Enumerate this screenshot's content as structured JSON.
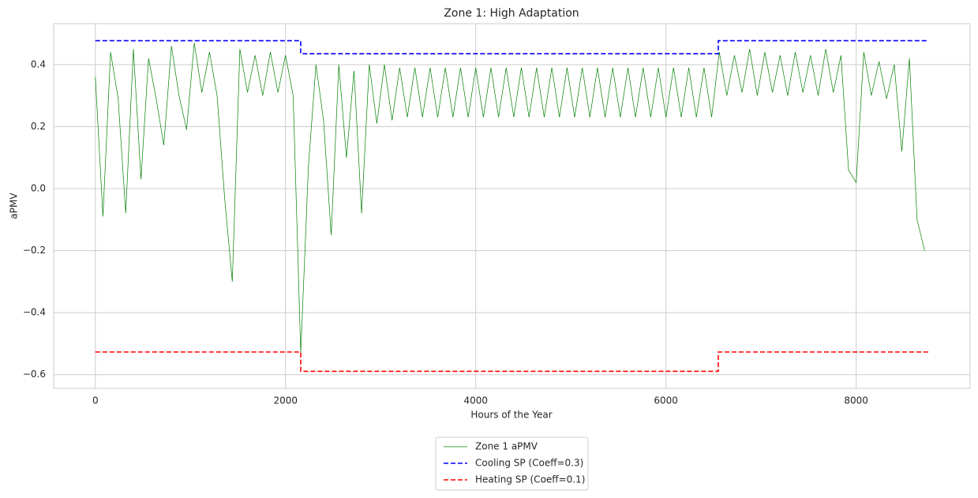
{
  "chart_data": {
    "type": "line",
    "title": "Zone 1: High Adaptation",
    "x_label": "Hours of the Year",
    "y_label": "aPMV",
    "xlim": [
      -438,
      9198
    ],
    "ylim": [
      -0.644,
      0.532
    ],
    "xticks": [
      0,
      2000,
      4000,
      6000,
      8000
    ],
    "yticks": [
      {
        "value": -0.6,
        "label": "−0.6"
      },
      {
        "value": -0.4,
        "label": "−0.4"
      },
      {
        "value": -0.2,
        "label": "−0.2"
      },
      {
        "value": 0,
        "label": "0.0"
      },
      0.2,
      0.4
    ],
    "grid": true,
    "legend": "below",
    "series": [
      {
        "name": "Zone 1 aPMV",
        "color": "#008000",
        "style": "solid",
        "x": [
          0,
          80,
          160,
          240,
          320,
          400,
          480,
          560,
          640,
          720,
          800,
          880,
          960,
          1040,
          1120,
          1200,
          1280,
          1360,
          1440,
          1520,
          1600,
          1680,
          1760,
          1840,
          1920,
          2000,
          2080,
          2160,
          2240,
          2320,
          2400,
          2480,
          2560,
          2640,
          2720,
          2800,
          2880,
          2960,
          3040,
          3120,
          3200,
          3280,
          3360,
          3440,
          3520,
          3600,
          3680,
          3760,
          3840,
          3920,
          4000,
          4080,
          4160,
          4240,
          4320,
          4400,
          4480,
          4560,
          4640,
          4720,
          4800,
          4880,
          4960,
          5040,
          5120,
          5200,
          5280,
          5360,
          5440,
          5520,
          5600,
          5680,
          5760,
          5840,
          5920,
          6000,
          6080,
          6160,
          6240,
          6320,
          6400,
          6480,
          6560,
          6640,
          6720,
          6800,
          6880,
          6960,
          7040,
          7120,
          7200,
          7280,
          7360,
          7440,
          7520,
          7600,
          7680,
          7760,
          7840,
          7920,
          8000,
          8080,
          8160,
          8240,
          8320,
          8400,
          8480,
          8560,
          8640,
          8720
        ],
        "values": [
          0.36,
          -0.09,
          0.44,
          0.29,
          -0.08,
          0.45,
          0.03,
          0.42,
          0.29,
          0.14,
          0.46,
          0.3,
          0.19,
          0.47,
          0.31,
          0.44,
          0.3,
          -0.03,
          -0.3,
          0.45,
          0.31,
          0.43,
          0.3,
          0.44,
          0.31,
          0.43,
          0.3,
          -0.53,
          0.07,
          0.4,
          0.22,
          -0.15,
          0.4,
          0.1,
          0.38,
          -0.08,
          0.4,
          0.21,
          0.4,
          0.22,
          0.39,
          0.23,
          0.39,
          0.23,
          0.39,
          0.23,
          0.39,
          0.23,
          0.39,
          0.23,
          0.39,
          0.23,
          0.39,
          0.23,
          0.39,
          0.23,
          0.39,
          0.23,
          0.39,
          0.23,
          0.39,
          0.23,
          0.39,
          0.23,
          0.39,
          0.23,
          0.39,
          0.23,
          0.39,
          0.23,
          0.39,
          0.23,
          0.39,
          0.23,
          0.39,
          0.23,
          0.39,
          0.23,
          0.39,
          0.23,
          0.39,
          0.23,
          0.44,
          0.3,
          0.43,
          0.31,
          0.45,
          0.3,
          0.44,
          0.31,
          0.43,
          0.3,
          0.44,
          0.31,
          0.43,
          0.3,
          0.45,
          0.31,
          0.43,
          0.06,
          0.02,
          0.44,
          0.3,
          0.41,
          0.29,
          0.4,
          0.12,
          0.42,
          -0.1,
          -0.2
        ]
      },
      {
        "name": "Cooling SP (Coeff=0.3)",
        "color": "#0000ff",
        "style": "dashed",
        "x": [
          0,
          2160,
          2160,
          6550,
          6550,
          8759
        ],
        "values": [
          0.477,
          0.477,
          0.435,
          0.435,
          0.477,
          0.477
        ]
      },
      {
        "name": "Heating SP (Coeff=0.1)",
        "color": "#ff0000",
        "style": "dashed",
        "x": [
          0,
          2160,
          2160,
          6550,
          6550,
          8759
        ],
        "values": [
          -0.527,
          -0.527,
          -0.589,
          -0.589,
          -0.527,
          -0.527
        ]
      }
    ]
  }
}
